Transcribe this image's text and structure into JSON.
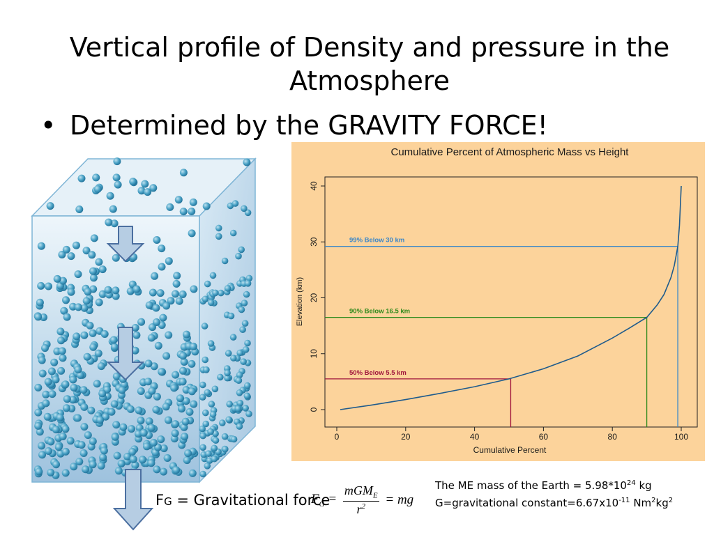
{
  "slide": {
    "title": "Vertical profile of Density and pressure  in the Atmosphere",
    "bullet": "Determined by the GRAVITY FORCE!"
  },
  "force_label": {
    "prefix": "F",
    "sub": "G",
    "rest": " = Gravitational force"
  },
  "formula": {
    "lhs": "F",
    "lhs_sub": "G",
    "numerator": "mGM",
    "numerator_sub": "E",
    "denominator": "r",
    "denominator_sup": "2",
    "rhs": "= mg"
  },
  "notes": {
    "line1_a": "The ME mass of the Earth = 5.98*10",
    "line1_sup": "24",
    "line1_b": " kg",
    "line2_a": "G=gravitational constant=6.67x10",
    "line2_sup1": "-11",
    "line2_b": " Nm",
    "line2_sup2": "2",
    "line2_c": "kg",
    "line2_sup3": "2"
  },
  "colors": {
    "panel_bg": "#fcd39b",
    "curve": "#1f5b8c",
    "blue_ref": "#3a86c8",
    "green_ref": "#2f8a1c",
    "red_ref": "#a0163c",
    "molecule": "#3d97bd",
    "arrow_fill": "#b6cde3",
    "arrow_stroke": "#4b6fa0"
  },
  "chart_data": {
    "type": "line",
    "title": "Cumulative Percent of Atmospheric Mass vs Height",
    "xlabel": "Cumulative Percent",
    "ylabel": "Elevation (km)",
    "xlim": [
      0,
      100
    ],
    "ylim": [
      0,
      40
    ],
    "xticks": [
      "0",
      "20",
      "40",
      "60",
      "80",
      "100"
    ],
    "yticks": [
      "0",
      "10",
      "20",
      "30",
      "40"
    ],
    "series": [
      {
        "x": [
          1,
          10,
          20,
          30,
          40,
          50,
          60,
          70,
          80,
          85,
          90,
          93,
          95,
          97,
          98,
          99,
          99.5,
          100
        ],
        "y": [
          0,
          0.8,
          1.8,
          2.9,
          4.1,
          5.5,
          7.3,
          9.6,
          12.8,
          14.6,
          16.5,
          18.7,
          20.6,
          23.6,
          25.8,
          29.2,
          33,
          40
        ]
      }
    ],
    "annotations": [
      {
        "text": "99% Below 30 km",
        "x": 99,
        "y": 29.2,
        "color": "#3a86c8"
      },
      {
        "text": "90% Below 16.5 km",
        "x": 90,
        "y": 16.5,
        "color": "#2f8a1c"
      },
      {
        "text": "50% Below 5.5 km",
        "x": 50.5,
        "y": 5.5,
        "color": "#a0163c"
      }
    ]
  }
}
